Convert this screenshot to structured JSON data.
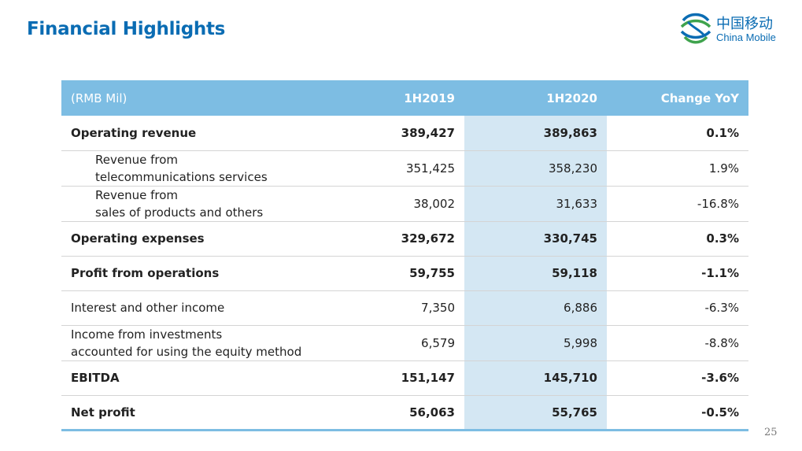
{
  "header": {
    "title": "Financial Highlights"
  },
  "logo": {
    "chinese": "中国移动",
    "english": "China Mobile"
  },
  "table": {
    "columns": [
      "(RMB Mil)",
      "1H2019",
      "1H2020",
      "Change YoY"
    ],
    "rows": [
      {
        "label_lines": [
          "Operating revenue"
        ],
        "v2019": "389,427",
        "v2020": "389,863",
        "change": "0.1%",
        "bold": true
      },
      {
        "label_lines": [
          "Revenue from",
          "telecommunications services"
        ],
        "v2019": "351,425",
        "v2020": "358,230",
        "change": "1.9%",
        "sub": true
      },
      {
        "label_lines": [
          "Revenue from",
          "sales of products and others"
        ],
        "v2019": "38,002",
        "v2020": "31,633",
        "change": "-16.8%",
        "sub": true
      },
      {
        "label_lines": [
          "Operating expenses"
        ],
        "v2019": "329,672",
        "v2020": "330,745",
        "change": "0.3%",
        "bold": true
      },
      {
        "label_lines": [
          "Profit from operations"
        ],
        "v2019": "59,755",
        "v2020": "59,118",
        "change": "-1.1%",
        "bold": true
      },
      {
        "label_lines": [
          "Interest and other income"
        ],
        "v2019": "7,350",
        "v2020": "6,886",
        "change": "-6.3%"
      },
      {
        "label_lines": [
          "Income from investments",
          "accounted for using the equity method"
        ],
        "v2019": "6,579",
        "v2020": "5,998",
        "change": "-8.8%"
      },
      {
        "label_lines": [
          "EBITDA"
        ],
        "v2019": "151,147",
        "v2020": "145,710",
        "change": "-3.6%",
        "bold": true
      },
      {
        "label_lines": [
          "Net profit"
        ],
        "v2019": "56,063",
        "v2020": "55,765",
        "change": "-0.5%",
        "bold": true
      }
    ]
  },
  "footer": {
    "page_number": "25"
  },
  "colors": {
    "brand": "#0a6cb3",
    "header_bg": "#7dbde3",
    "highlight_col": "#d4e7f3"
  }
}
